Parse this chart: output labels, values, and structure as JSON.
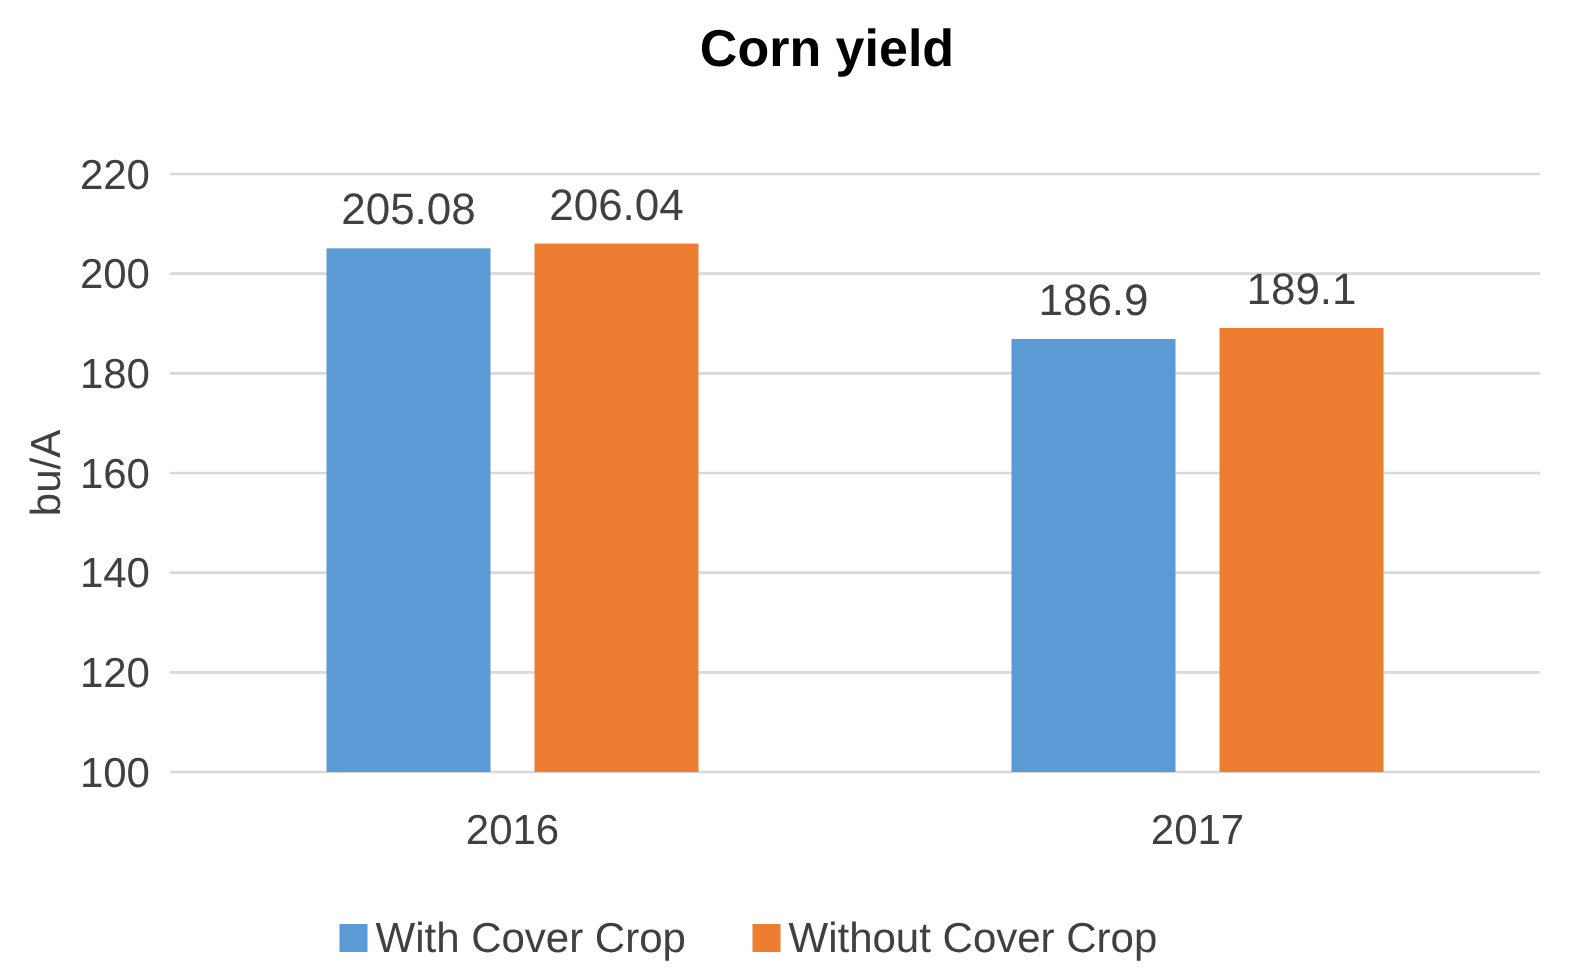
{
  "chart_data": {
    "type": "bar",
    "title": "Corn yield",
    "ylabel": "bu/A",
    "categories": [
      "2016",
      "2017"
    ],
    "series": [
      {
        "name": "With Cover Crop",
        "color": "#5b9bd5",
        "values": [
          205.08,
          186.9
        ]
      },
      {
        "name": "Without Cover Crop",
        "color": "#ed7d31",
        "values": [
          206.04,
          189.1
        ]
      }
    ],
    "ylim": [
      100,
      220
    ],
    "yticks": [
      100,
      120,
      140,
      160,
      180,
      200,
      220
    ],
    "grid": "y",
    "legend": "bottom",
    "data_labels": true
  }
}
